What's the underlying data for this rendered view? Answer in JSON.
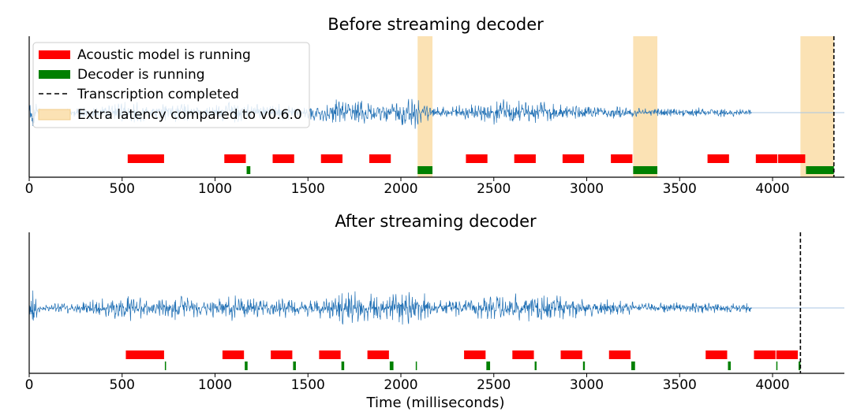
{
  "colors": {
    "acoustic": "#ff0000",
    "decoder": "#008000",
    "latency": "#fbe2b4",
    "waveform": "#1f6fb4",
    "completed": "#000000"
  },
  "chart_data": [
    {
      "type": "timeline",
      "title": "Before streaming decoder",
      "xlabel": "",
      "xlim": [
        0,
        4400
      ],
      "xticks": [
        0,
        500,
        1000,
        1500,
        2000,
        2500,
        3000,
        3500,
        4000
      ],
      "legend": {
        "placement": "top-left",
        "entries": [
          {
            "label": "Acoustic model is running",
            "kind": "acoustic"
          },
          {
            "label": "Decoder is running",
            "kind": "decoder"
          },
          {
            "label": "Transcription completed",
            "kind": "completed"
          },
          {
            "label": "Extra latency compared to v0.6.0",
            "kind": "latency"
          }
        ]
      },
      "waveform_end_ms": 3890,
      "acoustic_intervals": [
        [
          530,
          730
        ],
        [
          1050,
          1170
        ],
        [
          1310,
          1430
        ],
        [
          1570,
          1690
        ],
        [
          1830,
          1950
        ],
        [
          2350,
          2470
        ],
        [
          2610,
          2730
        ],
        [
          2870,
          2990
        ],
        [
          3130,
          3250
        ],
        [
          3650,
          3770
        ],
        [
          3910,
          4030
        ],
        [
          4030,
          4180
        ]
      ],
      "decoder_intervals": [
        [
          1170,
          1190
        ],
        [
          2090,
          2170
        ],
        [
          3250,
          3380
        ],
        [
          4180,
          4330
        ]
      ],
      "latency_regions": [
        [
          2090,
          2170
        ],
        [
          3250,
          3380
        ],
        [
          4150,
          4330
        ]
      ],
      "completed_ms": 4330
    },
    {
      "type": "timeline",
      "title": "After streaming decoder",
      "xlabel": "Time (milliseconds)",
      "xlim": [
        0,
        4400
      ],
      "xticks": [
        0,
        500,
        1000,
        1500,
        2000,
        2500,
        3000,
        3500,
        4000
      ],
      "waveform_end_ms": 3890,
      "acoustic_intervals": [
        [
          520,
          730
        ],
        [
          1040,
          1160
        ],
        [
          1300,
          1420
        ],
        [
          1560,
          1680
        ],
        [
          1820,
          1940
        ],
        [
          2340,
          2460
        ],
        [
          2600,
          2720
        ],
        [
          2860,
          2980
        ],
        [
          3120,
          3240
        ],
        [
          3640,
          3760
        ],
        [
          3900,
          4020
        ],
        [
          4020,
          4140
        ]
      ],
      "decoder_intervals": [
        [
          730,
          735
        ],
        [
          1160,
          1175
        ],
        [
          1420,
          1435
        ],
        [
          1680,
          1695
        ],
        [
          1940,
          1960
        ],
        [
          2080,
          2085
        ],
        [
          2460,
          2480
        ],
        [
          2720,
          2730
        ],
        [
          2980,
          2990
        ],
        [
          3240,
          3260
        ],
        [
          3760,
          3775
        ],
        [
          4020,
          4025
        ],
        [
          4140,
          4150
        ]
      ],
      "latency_regions": [],
      "completed_ms": 4150
    }
  ]
}
